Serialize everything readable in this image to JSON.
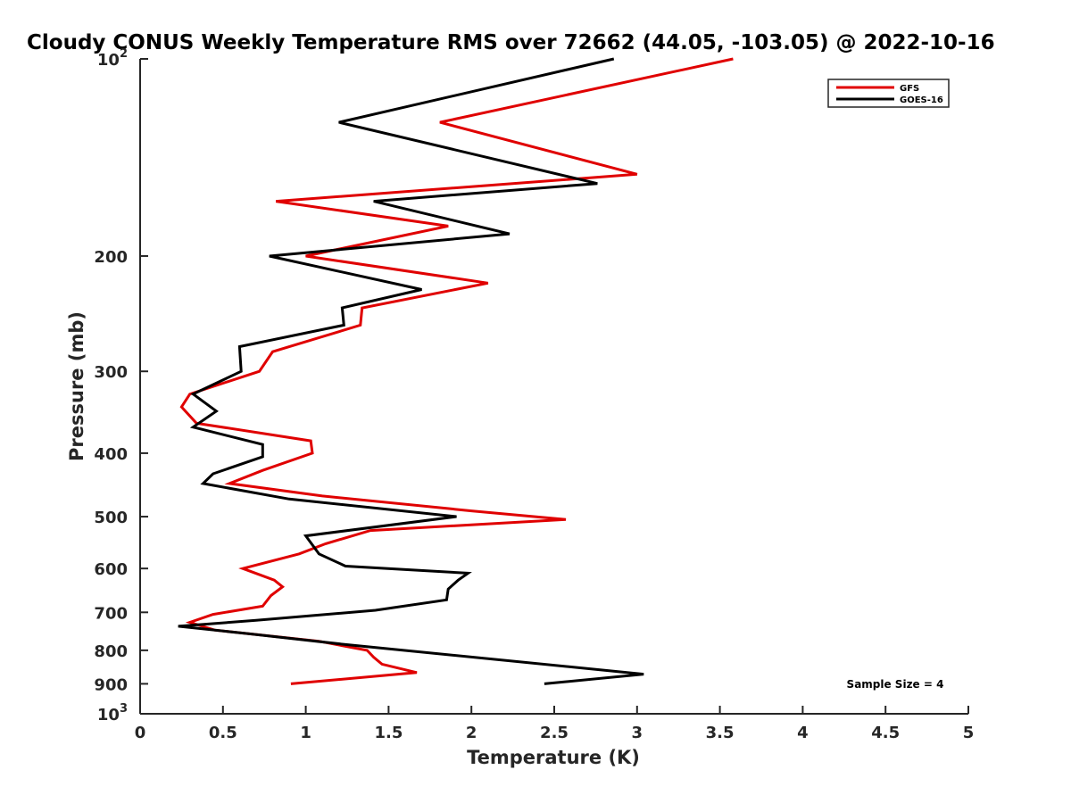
{
  "chart_data": {
    "type": "line",
    "title": "Cloudy CONUS Weekly Temperature RMS over 72662 (44.05, -103.05) @ 2022-10-16",
    "xlabel": "Temperature (K)",
    "ylabel": "Pressure (mb)",
    "xlim": [
      0,
      5
    ],
    "ylim": [
      100,
      1000
    ],
    "y_scale": "log",
    "y_reversed": true,
    "xticks": [
      0,
      0.5,
      1,
      1.5,
      2,
      2.5,
      3,
      3.5,
      4,
      4.5,
      5
    ],
    "xtick_labels": [
      "0",
      "0.5",
      "1",
      "1.5",
      "2",
      "2.5",
      "3",
      "3.5",
      "4",
      "4.5",
      "5"
    ],
    "yticks": [
      100,
      200,
      300,
      400,
      500,
      600,
      700,
      800,
      900,
      1000
    ],
    "ytick_labels": [
      {
        "base": "10",
        "exp": "2"
      },
      {
        "base": "200",
        "exp": ""
      },
      {
        "base": "300",
        "exp": ""
      },
      {
        "base": "400",
        "exp": ""
      },
      {
        "base": "500",
        "exp": ""
      },
      {
        "base": "600",
        "exp": ""
      },
      {
        "base": "700",
        "exp": ""
      },
      {
        "base": "800",
        "exp": ""
      },
      {
        "base": "900",
        "exp": ""
      },
      {
        "base": "10",
        "exp": "3"
      }
    ],
    "grid": false,
    "legend_position": "top-right",
    "annotation": "Sample Size = 4",
    "series": [
      {
        "name": "GFS",
        "color": "#e00000",
        "points": [
          [
            3.58,
            100
          ],
          [
            1.81,
            125
          ],
          [
            3.0,
            150
          ],
          [
            0.82,
            165
          ],
          [
            1.86,
            180
          ],
          [
            1.0,
            200
          ],
          [
            2.1,
            220
          ],
          [
            1.34,
            240
          ],
          [
            1.33,
            255
          ],
          [
            0.8,
            280
          ],
          [
            0.72,
            300
          ],
          [
            0.3,
            325
          ],
          [
            0.25,
            340
          ],
          [
            0.34,
            360
          ],
          [
            1.03,
            383
          ],
          [
            1.04,
            400
          ],
          [
            0.74,
            425
          ],
          [
            0.54,
            445
          ],
          [
            1.1,
            465
          ],
          [
            2.0,
            490
          ],
          [
            2.57,
            505
          ],
          [
            1.39,
            525
          ],
          [
            1.12,
            550
          ],
          [
            0.96,
            570
          ],
          [
            0.62,
            600
          ],
          [
            0.81,
            625
          ],
          [
            0.86,
            640
          ],
          [
            0.79,
            660
          ],
          [
            0.74,
            685
          ],
          [
            0.44,
            705
          ],
          [
            0.3,
            725
          ],
          [
            0.45,
            745
          ],
          [
            1.08,
            775
          ],
          [
            1.37,
            800
          ],
          [
            1.41,
            820
          ],
          [
            1.46,
            840
          ],
          [
            1.67,
            865
          ],
          [
            0.91,
            900
          ]
        ]
      },
      {
        "name": "GOES-16",
        "color": "#000000",
        "points": [
          [
            2.86,
            100
          ],
          [
            1.2,
            125
          ],
          [
            2.76,
            155
          ],
          [
            1.41,
            165
          ],
          [
            2.23,
            185
          ],
          [
            0.78,
            200
          ],
          [
            1.7,
            225
          ],
          [
            1.22,
            240
          ],
          [
            1.23,
            255
          ],
          [
            0.6,
            275
          ],
          [
            0.61,
            300
          ],
          [
            0.32,
            325
          ],
          [
            0.46,
            345
          ],
          [
            0.32,
            365
          ],
          [
            0.74,
            388
          ],
          [
            0.74,
            405
          ],
          [
            0.44,
            430
          ],
          [
            0.38,
            445
          ],
          [
            0.9,
            470
          ],
          [
            1.91,
            500
          ],
          [
            1.0,
            535
          ],
          [
            1.08,
            570
          ],
          [
            1.24,
            595
          ],
          [
            1.98,
            610
          ],
          [
            1.92,
            625
          ],
          [
            1.86,
            645
          ],
          [
            1.85,
            670
          ],
          [
            1.42,
            695
          ],
          [
            0.7,
            720
          ],
          [
            0.23,
            735
          ],
          [
            0.66,
            755
          ],
          [
            1.26,
            785
          ],
          [
            3.04,
            870
          ],
          [
            2.44,
            900
          ]
        ]
      }
    ]
  }
}
